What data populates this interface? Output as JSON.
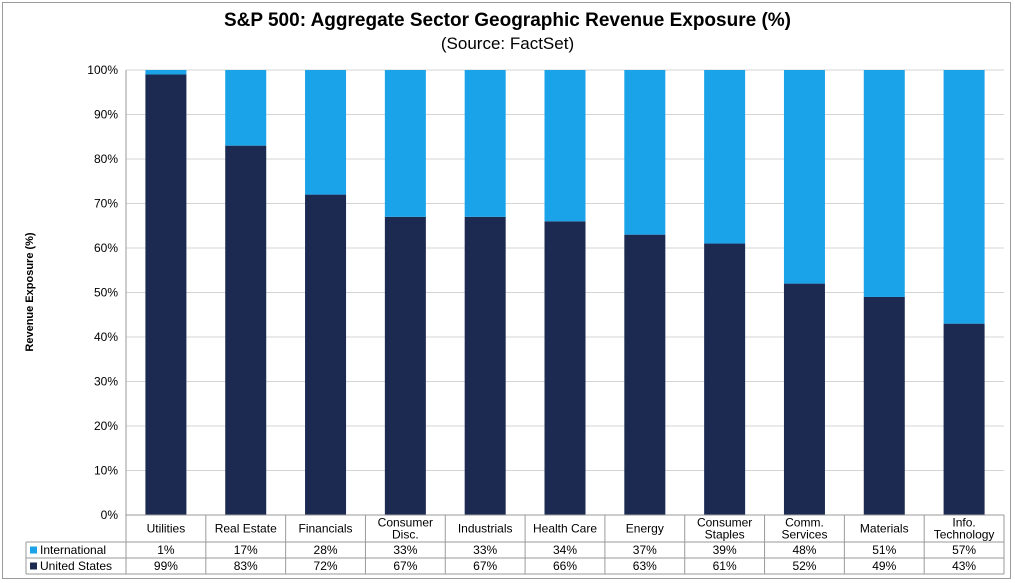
{
  "chart_data": {
    "type": "bar",
    "stacked": true,
    "title": "S&P 500: Aggregate Sector Geographic Revenue Exposure (%)",
    "subtitle": "(Source: FactSet)",
    "ylabel": "Revenue Exposure (%)",
    "xlabel": "",
    "ylim": [
      0,
      100
    ],
    "yticks": [
      "0%",
      "10%",
      "20%",
      "30%",
      "40%",
      "50%",
      "60%",
      "70%",
      "80%",
      "90%",
      "100%"
    ],
    "categories": [
      [
        "Utilities"
      ],
      [
        "Real Estate"
      ],
      [
        "Financials"
      ],
      [
        "Consumer",
        "Disc."
      ],
      [
        "Industrials"
      ],
      [
        "Health Care"
      ],
      [
        "Energy"
      ],
      [
        "Consumer",
        "Staples"
      ],
      [
        "Comm.",
        "Services"
      ],
      [
        "Materials"
      ],
      [
        "Info.",
        "Technology"
      ]
    ],
    "series": [
      {
        "name": "United States",
        "color": "#1c2a52",
        "values": [
          99,
          83,
          72,
          67,
          67,
          66,
          63,
          61,
          52,
          49,
          43
        ],
        "labels": [
          "99%",
          "83%",
          "72%",
          "67%",
          "67%",
          "66%",
          "63%",
          "61%",
          "52%",
          "49%",
          "43%"
        ]
      },
      {
        "name": "International",
        "color": "#1aa3e8",
        "values": [
          1,
          17,
          28,
          33,
          33,
          34,
          37,
          39,
          48,
          51,
          57
        ],
        "labels": [
          "1%",
          "17%",
          "28%",
          "33%",
          "33%",
          "34%",
          "37%",
          "39%",
          "48%",
          "51%",
          "57%"
        ]
      }
    ],
    "legend": "data-table",
    "grid": true
  }
}
